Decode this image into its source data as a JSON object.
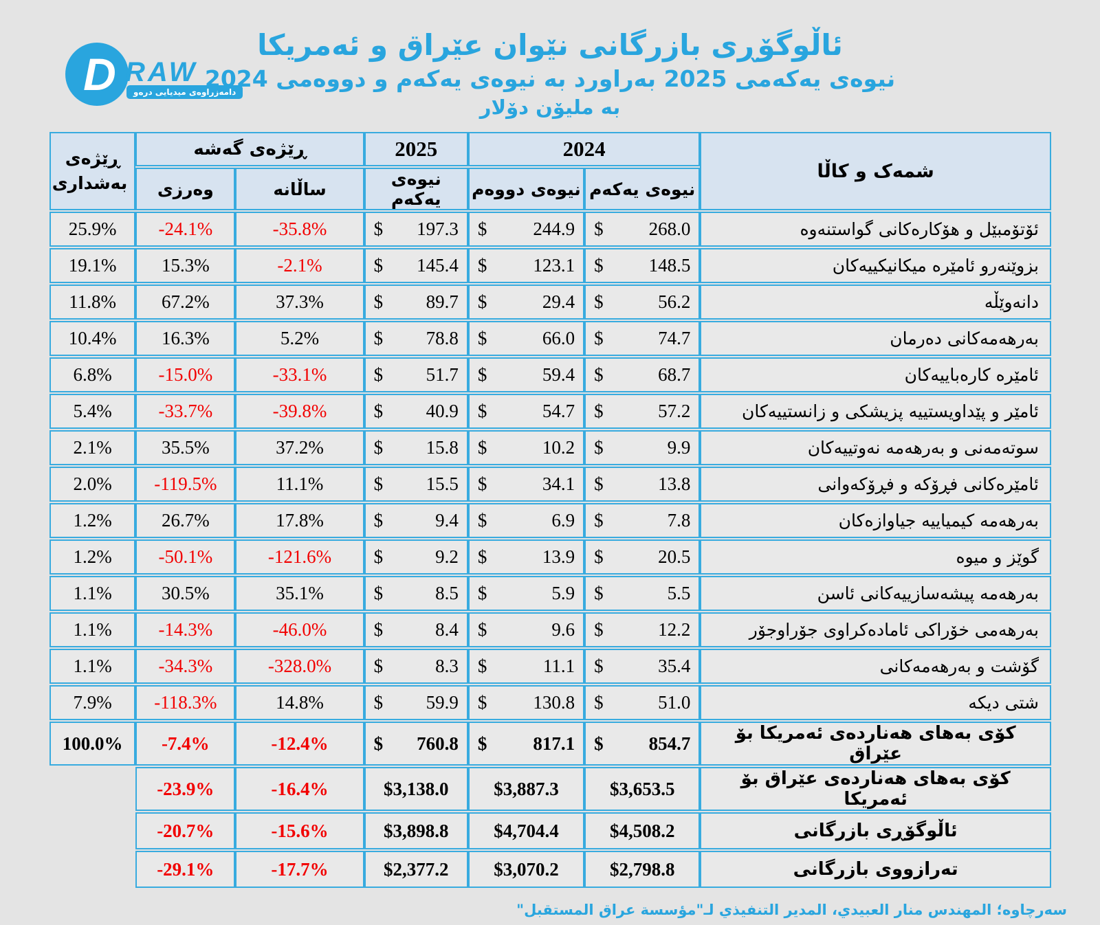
{
  "title": {
    "line1": "ئاڵوگۆڕی بازرگانی نێوان عێراق و ئەمریکا",
    "line2": "نیوەی یەکەمی 2025 بەراورد بە نیوەی یەکەم و دووەمی 2024",
    "line3": "بە ملیۆن دۆلار"
  },
  "logo": {
    "d": "D",
    "raw": "RAW",
    "tagline": "دامەزراوەی میدیایی درەو"
  },
  "colors": {
    "accent_blue": "#29a5de",
    "border_cyan": "#38abdf",
    "header_bg": "#d7e3f0",
    "cell_bg": "#e9e9e9",
    "page_bg": "#e4e4e4",
    "negative_red": "#f20000"
  },
  "chart_data": {
    "type": "table",
    "title": "ئاڵوگۆڕی بازرگانی نێوان عێراق و ئەمریکا",
    "subtitle": "نیوەی یەکەمی 2025 بەراورد بە نیوەی یەکەم و دووەمی 2024",
    "unit": "بە ملیۆن دۆلار",
    "headers": {
      "commodity": "شمەک و کاڵا",
      "y2024": "2024",
      "y2025": "2025",
      "growth": "ڕێژەی گەشە",
      "share": "ڕێژەی بەشداری",
      "h1": "نیوەی یەکەم",
      "h2": "نیوەی دووەم",
      "annual": "ساڵانە",
      "quarterly": "وەرزی"
    },
    "rows": [
      {
        "kind": "item",
        "money": "split",
        "label": "ئۆتۆمبێل و هۆکارەکانی گواستنەوە",
        "h1_2024": 268.0,
        "h2_2024": 244.9,
        "h1_2025": 197.3,
        "annual": "-35.8%",
        "quarterly": "-24.1%",
        "share": "25.9%"
      },
      {
        "kind": "item",
        "money": "split",
        "label": "بزوێنەرو ئامێرە میکانیکییەکان",
        "h1_2024": 148.5,
        "h2_2024": 123.1,
        "h1_2025": 145.4,
        "annual": "-2.1%",
        "quarterly": "15.3%",
        "share": "19.1%"
      },
      {
        "kind": "item",
        "money": "split",
        "label": "دانەوێڵە",
        "h1_2024": 56.2,
        "h2_2024": 29.4,
        "h1_2025": 89.7,
        "annual": "37.3%",
        "quarterly": "67.2%",
        "share": "11.8%"
      },
      {
        "kind": "item",
        "money": "split",
        "label": "بەرهەمەکانی دەرمان",
        "h1_2024": 74.7,
        "h2_2024": 66.0,
        "h1_2025": 78.8,
        "annual": "5.2%",
        "quarterly": "16.3%",
        "share": "10.4%"
      },
      {
        "kind": "item",
        "money": "split",
        "label": "ئامێرە کارەباییەکان",
        "h1_2024": 68.7,
        "h2_2024": 59.4,
        "h1_2025": 51.7,
        "annual": "-33.1%",
        "quarterly": "-15.0%",
        "share": "6.8%"
      },
      {
        "kind": "item",
        "money": "split",
        "label": "ئامێر و پێداویستییە پزیشکی و زانستییەکان",
        "h1_2024": 57.2,
        "h2_2024": 54.7,
        "h1_2025": 40.9,
        "annual": "-39.8%",
        "quarterly": "-33.7%",
        "share": "5.4%"
      },
      {
        "kind": "item",
        "money": "split",
        "label": "سوتەمەنی و بەرهەمە نەوتییەکان",
        "h1_2024": 9.9,
        "h2_2024": 10.2,
        "h1_2025": 15.8,
        "annual": "37.2%",
        "quarterly": "35.5%",
        "share": "2.1%"
      },
      {
        "kind": "item",
        "money": "split",
        "label": "ئامێرەکانی فڕۆکە و فڕۆکەوانی",
        "h1_2024": 13.8,
        "h2_2024": 34.1,
        "h1_2025": 15.5,
        "annual": "11.1%",
        "quarterly": "-119.5%",
        "share": "2.0%"
      },
      {
        "kind": "item",
        "money": "split",
        "label": "بەرهەمە کیمیاییە جیاوازەکان",
        "h1_2024": 7.8,
        "h2_2024": 6.9,
        "h1_2025": 9.4,
        "annual": "17.8%",
        "quarterly": "26.7%",
        "share": "1.2%"
      },
      {
        "kind": "item",
        "money": "split",
        "label": "گوێز و میوە",
        "h1_2024": 20.5,
        "h2_2024": 13.9,
        "h1_2025": 9.2,
        "annual": "-121.6%",
        "quarterly": "-50.1%",
        "share": "1.2%"
      },
      {
        "kind": "item",
        "money": "split",
        "label": "بەرهەمە پیشەسازییەکانی ئاسن",
        "h1_2024": 5.5,
        "h2_2024": 5.9,
        "h1_2025": 8.5,
        "annual": "35.1%",
        "quarterly": "30.5%",
        "share": "1.1%"
      },
      {
        "kind": "item",
        "money": "split",
        "label": "بەرهەمی خۆراکی ئامادەکراوی جۆراوجۆر",
        "h1_2024": 12.2,
        "h2_2024": 9.6,
        "h1_2025": 8.4,
        "annual": "-46.0%",
        "quarterly": "-14.3%",
        "share": "1.1%"
      },
      {
        "kind": "item",
        "money": "split",
        "label": "گۆشت و بەرهەمەکانی",
        "h1_2024": 35.4,
        "h2_2024": 11.1,
        "h1_2025": 8.3,
        "annual": "-328.0%",
        "quarterly": "-34.3%",
        "share": "1.1%"
      },
      {
        "kind": "item",
        "money": "split",
        "label": "شتی دیکە",
        "h1_2024": 51.0,
        "h2_2024": 130.8,
        "h1_2025": 59.9,
        "annual": "14.8%",
        "quarterly": "-118.3%",
        "share": "7.9%"
      },
      {
        "kind": "total",
        "money": "split",
        "label": "کۆی بەهای  هەناردەی ئەمریکا بۆ عێراق",
        "h1_2024": 854.7,
        "h2_2024": 817.1,
        "h1_2025": 760.8,
        "annual": "-12.4%",
        "quarterly": "-7.4%",
        "share": "100.0%"
      },
      {
        "kind": "total",
        "money": "joined",
        "label": "کۆی بەهای هەناردەی عێراق بۆ ئەمریکا",
        "h1_2024": 3653.5,
        "h2_2024": 3887.3,
        "h1_2025": 3138.0,
        "annual": "-16.4%",
        "quarterly": "-23.9%",
        "share": null
      },
      {
        "kind": "total",
        "money": "joined",
        "label": "ئاڵوگۆڕی بازرگانی",
        "h1_2024": 4508.2,
        "h2_2024": 4704.4,
        "h1_2025": 3898.8,
        "annual": "-15.6%",
        "quarterly": "-20.7%",
        "share": null
      },
      {
        "kind": "total",
        "money": "joined",
        "label": "تەرازووی بازرگانی",
        "h1_2024": 2798.8,
        "h2_2024": 3070.2,
        "h1_2025": 2377.2,
        "annual": "-17.7%",
        "quarterly": "-29.1%",
        "share": null
      }
    ]
  },
  "footer": {
    "source": "سەرچاوە؛ المهندس منار العبيدي، المدير التنفيذي لـ\"مؤسسة عراق المستقبل\""
  }
}
